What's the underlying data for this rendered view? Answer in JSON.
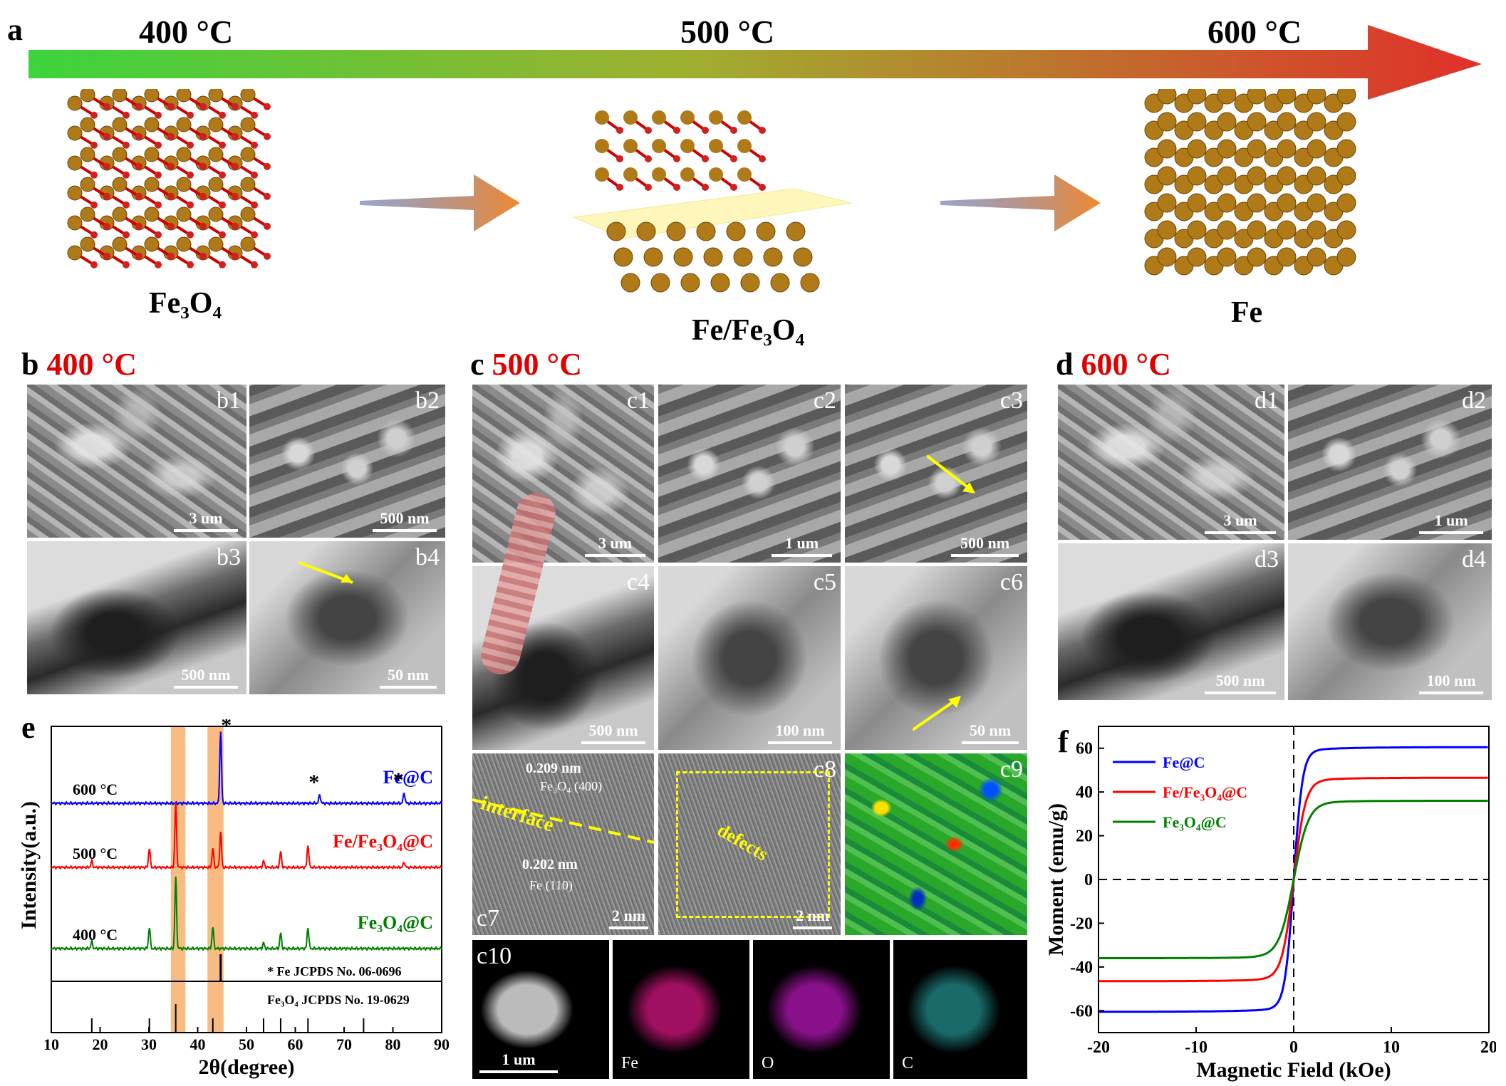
{
  "panel_a": {
    "letter": "a",
    "temps": [
      "400 °C",
      "500 °C",
      "600 °C"
    ],
    "structures": [
      "Fe₃O₄",
      "Fe/Fe₃O₄",
      "Fe"
    ]
  },
  "panel_b": {
    "letter": "b",
    "temp": "400 °C",
    "subs": [
      {
        "label": "b1",
        "scale": "3 um"
      },
      {
        "label": "b2",
        "scale": "500 nm"
      },
      {
        "label": "b3",
        "scale": "500 nm"
      },
      {
        "label": "b4",
        "scale": "50 nm"
      }
    ]
  },
  "panel_c": {
    "letter": "c",
    "temp": "500 °C",
    "subs": [
      {
        "label": "c1",
        "scale": "3 um"
      },
      {
        "label": "c2",
        "scale": "1 um"
      },
      {
        "label": "c3",
        "scale": "500 nm"
      },
      {
        "label": "c4",
        "scale": "500 nm"
      },
      {
        "label": "c5",
        "scale": "100 nm"
      },
      {
        "label": "c6",
        "scale": "50 nm"
      },
      {
        "label": "c7",
        "scale": "2 nm"
      },
      {
        "label": "c8",
        "scale": "2 nm"
      },
      {
        "label": "c9"
      },
      {
        "label": "c10",
        "scale": "1 um"
      }
    ],
    "c7_annotations": [
      "0.209 nm",
      "Fe₃O₄ (400)",
      "interface",
      "0.202 nm",
      "Fe (110)"
    ],
    "c8_annotation": "defects",
    "map_labels": [
      "Fe",
      "O",
      "C"
    ]
  },
  "panel_d": {
    "letter": "d",
    "temp": "600 °C",
    "subs": [
      {
        "label": "d1",
        "scale": "3 um"
      },
      {
        "label": "d2",
        "scale": "1 um"
      },
      {
        "label": "d3",
        "scale": "500 nm"
      },
      {
        "label": "d4",
        "scale": "100 nm"
      }
    ]
  },
  "chart_data": [
    {
      "panel": "e",
      "type": "line",
      "xlabel": "2θ(degree)",
      "ylabel": "Intensity(a.u.)",
      "xlim": [
        10,
        90
      ],
      "xticks": [
        10,
        20,
        30,
        40,
        50,
        60,
        70,
        80,
        90
      ],
      "series": [
        {
          "name": "Fe@C",
          "temp": "600 °C",
          "color": "#0000ff",
          "peaks": [
            {
              "x": 44.7,
              "h": 1.0
            },
            {
              "x": 65.0,
              "h": 0.12
            },
            {
              "x": 82.3,
              "h": 0.15
            }
          ]
        },
        {
          "name": "Fe/Fe₃O₄@C",
          "temp": "500 °C",
          "color": "#ff0000",
          "peaks": [
            {
              "x": 18.3,
              "h": 0.1
            },
            {
              "x": 30.1,
              "h": 0.3
            },
            {
              "x": 35.5,
              "h": 1.0
            },
            {
              "x": 43.1,
              "h": 0.3
            },
            {
              "x": 44.7,
              "h": 0.55
            },
            {
              "x": 53.5,
              "h": 0.1
            },
            {
              "x": 57.0,
              "h": 0.25
            },
            {
              "x": 62.6,
              "h": 0.35
            },
            {
              "x": 82.3,
              "h": 0.08
            }
          ]
        },
        {
          "name": "Fe₃O₄@C",
          "temp": "400 °C",
          "color": "#008000",
          "peaks": [
            {
              "x": 18.3,
              "h": 0.1
            },
            {
              "x": 30.1,
              "h": 0.3
            },
            {
              "x": 35.5,
              "h": 1.0
            },
            {
              "x": 43.1,
              "h": 0.3
            },
            {
              "x": 53.5,
              "h": 0.08
            },
            {
              "x": 57.0,
              "h": 0.22
            },
            {
              "x": 62.6,
              "h": 0.3
            }
          ]
        }
      ],
      "reference_lines": [
        {
          "label": "Fe  JCPDS No. 06-0696",
          "marker": "*",
          "positions": [
            44.7
          ]
        },
        {
          "label": "Fe₃O₄ JCPDS No. 19-0629",
          "positions": [
            18.3,
            30.1,
            35.5,
            43.1,
            53.5,
            57.0,
            62.6,
            74.0
          ]
        }
      ],
      "highlight_bands": [
        [
          34.5,
          37.5
        ],
        [
          42.0,
          45.3
        ]
      ]
    },
    {
      "panel": "f",
      "type": "line",
      "xlabel": "Magnetic Field (kOe)",
      "ylabel": "Moment (emu/g)",
      "xlim": [
        -20,
        20
      ],
      "ylim": [
        -70,
        70
      ],
      "xticks": [
        -20,
        -10,
        0,
        10,
        20
      ],
      "yticks": [
        -60,
        -40,
        -20,
        0,
        20,
        40,
        60
      ],
      "series": [
        {
          "name": "Fe@C",
          "color": "#0000ff",
          "ms": 60.5
        },
        {
          "name": "Fe/Fe₃O₄@C",
          "color": "#ff0000",
          "ms": 46.5
        },
        {
          "name": "Fe₃O₄@C",
          "color": "#008000",
          "ms": 36
        }
      ]
    }
  ]
}
